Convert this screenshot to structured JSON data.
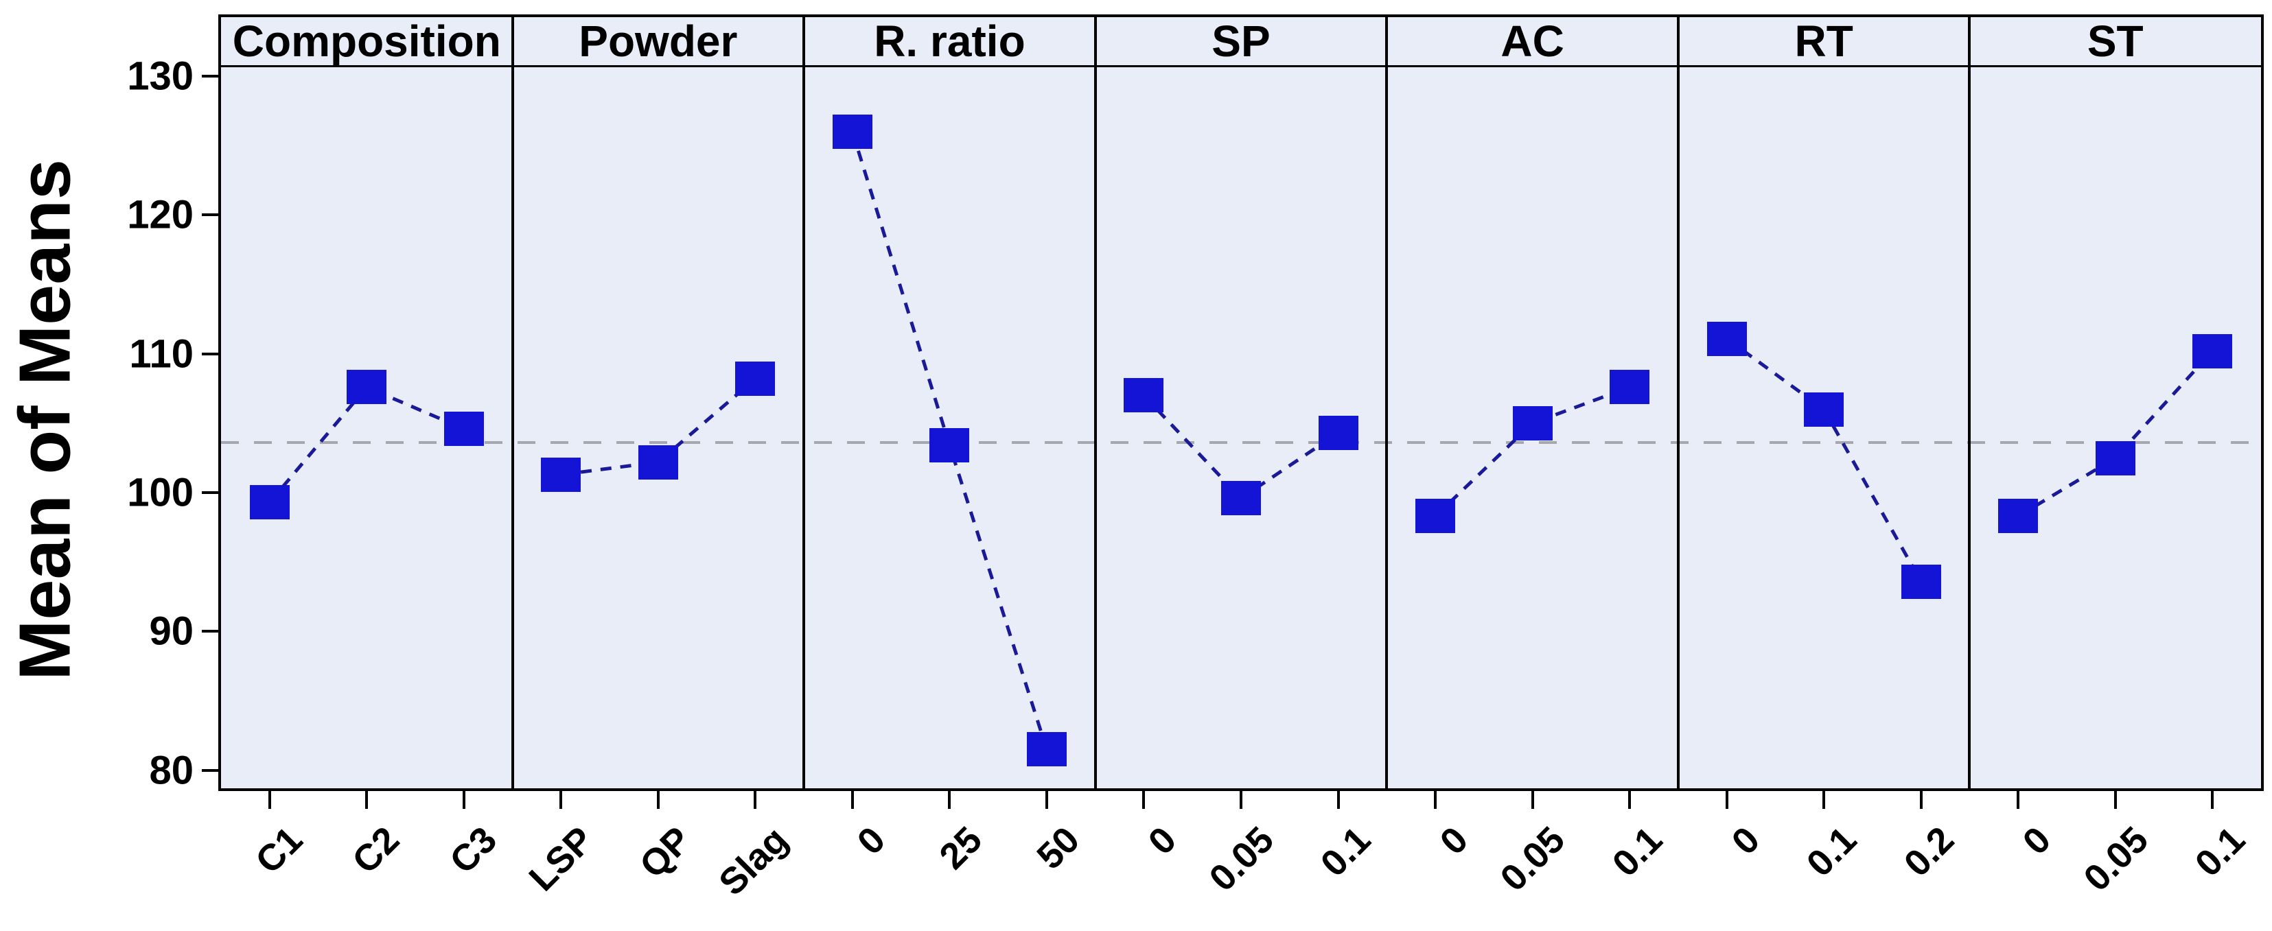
{
  "colors": {
    "marker": "#1414D6",
    "series_line": "#1A1A99",
    "reference_line": "#A7A7AF",
    "panel_background": "#E9EDF7",
    "border": "#000000",
    "page_background": "#FFFFFF",
    "text": "#000000"
  },
  "chart_data": {
    "type": "line",
    "subtype": "main-effects-plot",
    "title": "",
    "ylabel": "Mean of Means",
    "xlabel": "",
    "ylim": [
      78.7,
      130.8
    ],
    "yticks": [
      80,
      90,
      100,
      110,
      120,
      130
    ],
    "grid": false,
    "legend": null,
    "marker": "square",
    "line_style": "dashed",
    "reference_line": 103.6,
    "panels": [
      {
        "label": "Composition",
        "categories": [
          "C1",
          "C2",
          "C3"
        ],
        "values": [
          99.3,
          107.6,
          104.6
        ]
      },
      {
        "label": "Powder",
        "categories": [
          "LSP",
          "QP",
          "Slag"
        ],
        "values": [
          101.3,
          102.2,
          108.2
        ]
      },
      {
        "label": "R. ratio",
        "categories": [
          "0",
          "25",
          "50"
        ],
        "values": [
          126.0,
          103.4,
          81.5
        ]
      },
      {
        "label": "SP",
        "categories": [
          "0",
          "0.05",
          "0.1"
        ],
        "values": [
          107.0,
          99.6,
          104.3
        ]
      },
      {
        "label": "AC",
        "categories": [
          "0",
          "0.05",
          "0.1"
        ],
        "values": [
          98.3,
          105.0,
          107.6
        ]
      },
      {
        "label": "RT",
        "categories": [
          "0",
          "0.1",
          "0.2"
        ],
        "values": [
          111.1,
          106.0,
          93.6
        ]
      },
      {
        "label": "ST",
        "categories": [
          "0",
          "0.05",
          "0.1"
        ],
        "values": [
          98.3,
          102.5,
          110.2
        ]
      }
    ]
  }
}
